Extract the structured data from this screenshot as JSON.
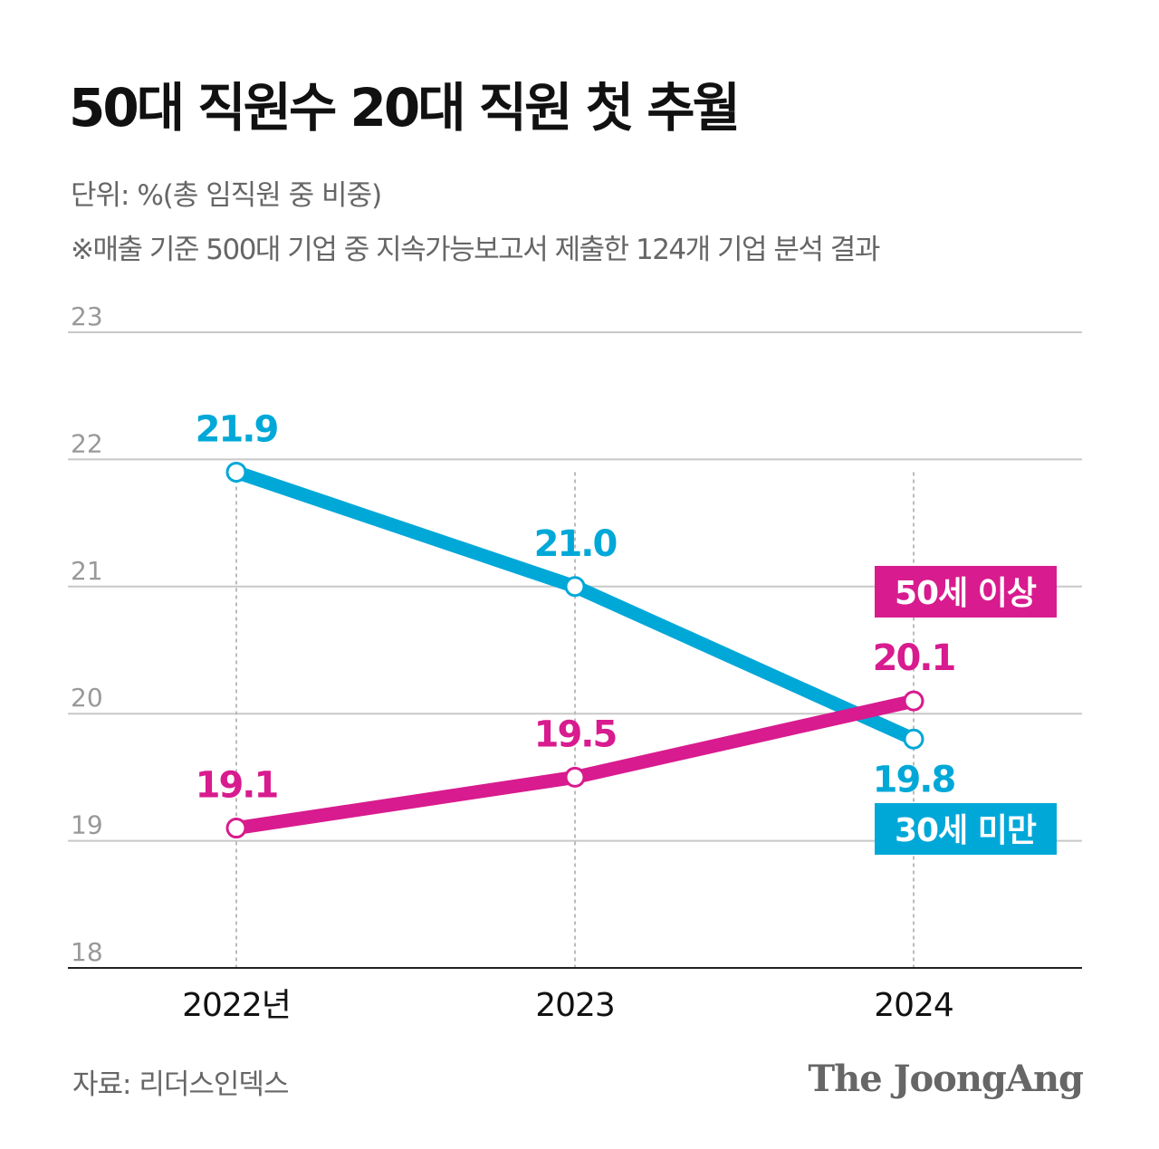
{
  "title": "50대 직원수 20대 직원 첫 추월",
  "unit": "단위: %(총 임직원 중 비중)",
  "note": "※매출 기준 500대 기업 중 지속가능보고서 제출한 124개 기업 분석 결과",
  "source": "자료: 리더스인덱스",
  "logo": "The JoongAng",
  "chart_data": {
    "type": "line",
    "categories": [
      "2022년",
      "2023",
      "2024"
    ],
    "ylim": [
      18,
      23
    ],
    "yticks": [
      "18",
      "19",
      "20",
      "21",
      "22",
      "23"
    ],
    "grid": true,
    "series": [
      {
        "name": "30세 미만",
        "values": [
          21.9,
          21.0,
          19.8
        ],
        "labels": [
          "21.9",
          "21.0",
          "19.8"
        ],
        "color": "#00a8d8"
      },
      {
        "name": "50세 이상",
        "values": [
          19.1,
          19.5,
          20.1
        ],
        "labels": [
          "19.1",
          "19.5",
          "20.1"
        ],
        "color": "#d81b8e"
      }
    ]
  }
}
